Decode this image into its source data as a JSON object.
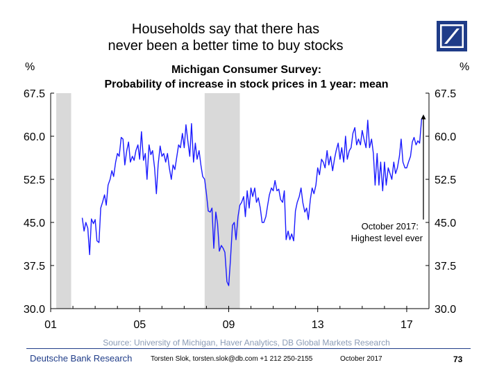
{
  "headline": {
    "line1": "Households say that there has",
    "line2": "never been a better time to buy stocks"
  },
  "footer": {
    "brand": "Deutsche Bank Research",
    "author": "Torsten Slok, torsten.slok@db.com +1 212 250-2155",
    "date": "October 2017",
    "page": "73"
  },
  "colors": {
    "line": "#1a1aff",
    "recession": "#d9d9d9",
    "brand": "#1f3c88",
    "source_text": "#8a9bb5"
  },
  "chart_data": {
    "type": "line",
    "title": "Michigan Consumer Survey:",
    "subtitle": "Probability of increase in stock prices in 1 year: mean",
    "ylabel_left": "%",
    "ylabel_right": "%",
    "ylim": [
      30.0,
      67.5
    ],
    "yticks": [
      "30.0",
      "37.5",
      "45.0",
      "52.5",
      "60.0",
      "67.5"
    ],
    "xlim": [
      2001.0,
      2018.0
    ],
    "xticks": [
      {
        "value": 2001,
        "label": "01"
      },
      {
        "value": 2005,
        "label": "05"
      },
      {
        "value": 2009,
        "label": "09"
      },
      {
        "value": 2013,
        "label": "13"
      },
      {
        "value": 2017,
        "label": "17"
      }
    ],
    "recessions": [
      [
        2001.25,
        2001.92
      ],
      [
        2007.92,
        2009.5
      ]
    ],
    "annotation": {
      "lines": [
        "October 2017:",
        "Highest level ever"
      ],
      "arrow_x": 2017.75,
      "arrow_from_y": 45.5,
      "arrow_to_y": 63.8
    },
    "source": "Source: University of Michigan, Haver Analytics, DB Global Markets Research",
    "series": [
      {
        "points": [
          [
            2002.42,
            45.8
          ],
          [
            2002.5,
            43.5
          ],
          [
            2002.58,
            45.0
          ],
          [
            2002.67,
            44.0
          ],
          [
            2002.75,
            39.4
          ],
          [
            2002.83,
            45.6
          ],
          [
            2002.92,
            44.8
          ],
          [
            2003.0,
            45.5
          ],
          [
            2003.08,
            41.8
          ],
          [
            2003.17,
            41.5
          ],
          [
            2003.25,
            47.5
          ],
          [
            2003.33,
            48.5
          ],
          [
            2003.42,
            49.8
          ],
          [
            2003.5,
            48.0
          ],
          [
            2003.58,
            51.5
          ],
          [
            2003.67,
            52.5
          ],
          [
            2003.75,
            54.0
          ],
          [
            2003.83,
            53.0
          ],
          [
            2003.92,
            55.5
          ],
          [
            2004.0,
            57.0
          ],
          [
            2004.08,
            56.5
          ],
          [
            2004.17,
            59.8
          ],
          [
            2004.25,
            59.5
          ],
          [
            2004.33,
            55.0
          ],
          [
            2004.42,
            57.5
          ],
          [
            2004.5,
            59.0
          ],
          [
            2004.58,
            55.5
          ],
          [
            2004.67,
            56.5
          ],
          [
            2004.75,
            55.8
          ],
          [
            2004.83,
            57.5
          ],
          [
            2004.92,
            58.5
          ],
          [
            2005.0,
            56.0
          ],
          [
            2005.08,
            60.8
          ],
          [
            2005.17,
            55.8
          ],
          [
            2005.25,
            57.0
          ],
          [
            2005.33,
            52.5
          ],
          [
            2005.42,
            58.5
          ],
          [
            2005.5,
            56.8
          ],
          [
            2005.58,
            57.5
          ],
          [
            2005.67,
            54.5
          ],
          [
            2005.75,
            50.0
          ],
          [
            2005.83,
            55.0
          ],
          [
            2005.92,
            58.3
          ],
          [
            2006.0,
            56.5
          ],
          [
            2006.08,
            57.0
          ],
          [
            2006.17,
            55.5
          ],
          [
            2006.25,
            57.0
          ],
          [
            2006.33,
            54.5
          ],
          [
            2006.42,
            52.5
          ],
          [
            2006.5,
            55.0
          ],
          [
            2006.58,
            54.2
          ],
          [
            2006.67,
            56.5
          ],
          [
            2006.75,
            58.5
          ],
          [
            2006.83,
            58.0
          ],
          [
            2006.92,
            60.5
          ],
          [
            2007.0,
            58.0
          ],
          [
            2007.08,
            62.0
          ],
          [
            2007.17,
            59.0
          ],
          [
            2007.25,
            56.5
          ],
          [
            2007.33,
            62.2
          ],
          [
            2007.42,
            55.5
          ],
          [
            2007.5,
            58.8
          ],
          [
            2007.58,
            56.0
          ],
          [
            2007.67,
            57.5
          ],
          [
            2007.75,
            55.0
          ],
          [
            2007.83,
            53.0
          ],
          [
            2007.92,
            52.5
          ],
          [
            2008.0,
            50.0
          ],
          [
            2008.08,
            47.0
          ],
          [
            2008.17,
            46.8
          ],
          [
            2008.25,
            47.5
          ],
          [
            2008.33,
            40.5
          ],
          [
            2008.42,
            46.8
          ],
          [
            2008.5,
            44.8
          ],
          [
            2008.58,
            40.0
          ],
          [
            2008.67,
            41.0
          ],
          [
            2008.75,
            40.5
          ],
          [
            2008.83,
            39.8
          ],
          [
            2008.92,
            34.7
          ],
          [
            2009.0,
            34.0
          ],
          [
            2009.08,
            38.5
          ],
          [
            2009.17,
            44.5
          ],
          [
            2009.25,
            45.0
          ],
          [
            2009.33,
            42.0
          ],
          [
            2009.42,
            46.0
          ],
          [
            2009.5,
            48.0
          ],
          [
            2009.58,
            48.5
          ],
          [
            2009.67,
            49.5
          ],
          [
            2009.75,
            46.0
          ],
          [
            2009.83,
            50.5
          ],
          [
            2009.92,
            47.5
          ],
          [
            2010.0,
            51.0
          ],
          [
            2010.08,
            49.5
          ],
          [
            2010.17,
            51.0
          ],
          [
            2010.25,
            48.5
          ],
          [
            2010.33,
            49.3
          ],
          [
            2010.42,
            47.5
          ],
          [
            2010.5,
            45.0
          ],
          [
            2010.58,
            45.0
          ],
          [
            2010.67,
            46.0
          ],
          [
            2010.75,
            48.0
          ],
          [
            2010.83,
            49.8
          ],
          [
            2010.92,
            51.0
          ],
          [
            2011.0,
            50.5
          ],
          [
            2011.08,
            52.3
          ],
          [
            2011.17,
            50.5
          ],
          [
            2011.25,
            50.8
          ],
          [
            2011.33,
            49.0
          ],
          [
            2011.42,
            48.5
          ],
          [
            2011.5,
            50.5
          ],
          [
            2011.58,
            42.0
          ],
          [
            2011.67,
            43.5
          ],
          [
            2011.75,
            42.0
          ],
          [
            2011.83,
            43.0
          ],
          [
            2011.92,
            41.8
          ],
          [
            2012.0,
            47.0
          ],
          [
            2012.08,
            48.5
          ],
          [
            2012.17,
            49.5
          ],
          [
            2012.25,
            51.0
          ],
          [
            2012.33,
            48.5
          ],
          [
            2012.42,
            46.8
          ],
          [
            2012.5,
            47.5
          ],
          [
            2012.58,
            45.5
          ],
          [
            2012.67,
            49.0
          ],
          [
            2012.75,
            51.0
          ],
          [
            2012.83,
            50.0
          ],
          [
            2012.92,
            51.5
          ],
          [
            2013.0,
            54.5
          ],
          [
            2013.08,
            53.3
          ],
          [
            2013.17,
            56.0
          ],
          [
            2013.25,
            55.5
          ],
          [
            2013.33,
            54.5
          ],
          [
            2013.42,
            57.5
          ],
          [
            2013.5,
            55.0
          ],
          [
            2013.58,
            56.5
          ],
          [
            2013.67,
            54.0
          ],
          [
            2013.75,
            56.0
          ],
          [
            2013.83,
            57.5
          ],
          [
            2013.92,
            58.8
          ],
          [
            2014.0,
            56.0
          ],
          [
            2014.08,
            58.0
          ],
          [
            2014.17,
            55.5
          ],
          [
            2014.25,
            60.0
          ],
          [
            2014.33,
            56.0
          ],
          [
            2014.42,
            57.5
          ],
          [
            2014.5,
            58.0
          ],
          [
            2014.58,
            60.5
          ],
          [
            2014.67,
            61.5
          ],
          [
            2014.75,
            58.5
          ],
          [
            2014.83,
            59.5
          ],
          [
            2014.92,
            58.5
          ],
          [
            2015.0,
            61.0
          ],
          [
            2015.08,
            59.5
          ],
          [
            2015.17,
            58.0
          ],
          [
            2015.25,
            62.8
          ],
          [
            2015.33,
            58.0
          ],
          [
            2015.42,
            59.5
          ],
          [
            2015.5,
            57.0
          ],
          [
            2015.58,
            51.5
          ],
          [
            2015.67,
            57.0
          ],
          [
            2015.75,
            51.5
          ],
          [
            2015.83,
            55.5
          ],
          [
            2015.92,
            50.5
          ],
          [
            2016.0,
            55.5
          ],
          [
            2016.08,
            51.5
          ],
          [
            2016.17,
            54.5
          ],
          [
            2016.25,
            53.5
          ],
          [
            2016.33,
            52.5
          ],
          [
            2016.42,
            55.5
          ],
          [
            2016.5,
            53.5
          ],
          [
            2016.58,
            54.5
          ],
          [
            2016.67,
            56.5
          ],
          [
            2016.75,
            59.5
          ],
          [
            2016.83,
            55.5
          ],
          [
            2016.92,
            54.5
          ],
          [
            2017.0,
            54.5
          ],
          [
            2017.08,
            55.5
          ],
          [
            2017.17,
            56.5
          ],
          [
            2017.25,
            59.0
          ],
          [
            2017.33,
            59.8
          ],
          [
            2017.42,
            58.5
          ],
          [
            2017.5,
            59.2
          ],
          [
            2017.58,
            58.8
          ],
          [
            2017.67,
            63.0
          ],
          [
            2017.75,
            63.5
          ]
        ]
      }
    ]
  }
}
